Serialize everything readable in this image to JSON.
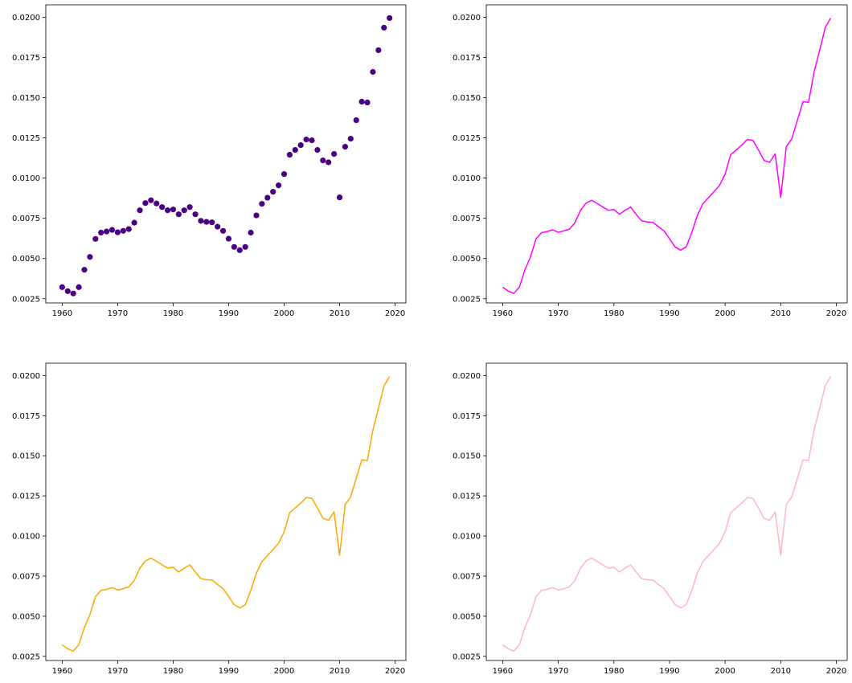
{
  "chart_data": [
    {
      "type": "scatter",
      "color": "#4b0082",
      "title": "",
      "xlabel": "",
      "ylabel": "",
      "xlim": [
        1957.05,
        2021.95
      ],
      "ylim": [
        0.00224,
        0.02077
      ],
      "xticks": [
        1960,
        1970,
        1980,
        1990,
        2000,
        2010,
        2020
      ],
      "xtick_labels": [
        "1960",
        "1970",
        "1980",
        "1990",
        "2000",
        "2010",
        "2020"
      ],
      "yticks": [
        0.0025,
        0.005,
        0.0075,
        0.01,
        0.0125,
        0.015,
        0.0175,
        0.02
      ],
      "ytick_labels": [
        "0.0025",
        "0.0050",
        "0.0075",
        "0.0100",
        "0.0125",
        "0.0150",
        "0.0175",
        "0.0200"
      ],
      "series": [
        {
          "x": [
            1960,
            1961,
            1962,
            1963,
            1964,
            1965,
            1966,
            1967,
            1968,
            1969,
            1970,
            1971,
            1972,
            1973,
            1974,
            1975,
            1976,
            1977,
            1978,
            1979,
            1980,
            1981,
            1982,
            1983,
            1984,
            1985,
            1986,
            1987,
            1988,
            1989,
            1990,
            1991,
            1992,
            1993,
            1994,
            1995,
            1996,
            1997,
            1998,
            1999,
            2000,
            2001,
            2002,
            2003,
            2004,
            2005,
            2006,
            2007,
            2008,
            2009,
            2010,
            2011,
            2012,
            2013,
            2014,
            2015,
            2016,
            2017,
            2018,
            2019
          ],
          "y": [
            0.00322,
            0.00297,
            0.00283,
            0.00322,
            0.0043,
            0.0051,
            0.00622,
            0.00661,
            0.00668,
            0.00678,
            0.00663,
            0.00672,
            0.00683,
            0.00723,
            0.008,
            0.00845,
            0.00862,
            0.00842,
            0.0082,
            0.008,
            0.00805,
            0.00775,
            0.008,
            0.0082,
            0.00775,
            0.00734,
            0.00728,
            0.00725,
            0.00698,
            0.00672,
            0.00623,
            0.00572,
            0.00552,
            0.00572,
            0.00661,
            0.00768,
            0.0084,
            0.00878,
            0.00915,
            0.00955,
            0.01025,
            0.01145,
            0.01175,
            0.01205,
            0.0124,
            0.01235,
            0.01175,
            0.0111,
            0.01098,
            0.0115,
            0.0088,
            0.01195,
            0.01245,
            0.0136,
            0.01475,
            0.0147,
            0.0166,
            0.01795,
            0.01935,
            0.01995
          ]
        }
      ]
    },
    {
      "type": "line",
      "color": "#ff00ff",
      "title": "",
      "xlabel": "",
      "ylabel": "",
      "xlim": [
        1957.05,
        2021.95
      ],
      "ylim": [
        0.00224,
        0.02077
      ],
      "xticks": [
        1960,
        1970,
        1980,
        1990,
        2000,
        2010,
        2020
      ],
      "xtick_labels": [
        "1960",
        "1970",
        "1980",
        "1990",
        "2000",
        "2010",
        "2020"
      ],
      "yticks": [
        0.0025,
        0.005,
        0.0075,
        0.01,
        0.0125,
        0.015,
        0.0175,
        0.02
      ],
      "ytick_labels": [
        "0.0025",
        "0.0050",
        "0.0075",
        "0.0100",
        "0.0125",
        "0.0150",
        "0.0175",
        "0.0200"
      ],
      "series": [
        {
          "x": [
            1960,
            1961,
            1962,
            1963,
            1964,
            1965,
            1966,
            1967,
            1968,
            1969,
            1970,
            1971,
            1972,
            1973,
            1974,
            1975,
            1976,
            1977,
            1978,
            1979,
            1980,
            1981,
            1982,
            1983,
            1984,
            1985,
            1986,
            1987,
            1988,
            1989,
            1990,
            1991,
            1992,
            1993,
            1994,
            1995,
            1996,
            1997,
            1998,
            1999,
            2000,
            2001,
            2002,
            2003,
            2004,
            2005,
            2006,
            2007,
            2008,
            2009,
            2010,
            2011,
            2012,
            2013,
            2014,
            2015,
            2016,
            2017,
            2018,
            2019
          ],
          "y": [
            0.00322,
            0.00297,
            0.00283,
            0.00322,
            0.0043,
            0.0051,
            0.00622,
            0.00661,
            0.00668,
            0.00678,
            0.00663,
            0.00672,
            0.00683,
            0.00723,
            0.008,
            0.00845,
            0.00862,
            0.00842,
            0.0082,
            0.008,
            0.00805,
            0.00775,
            0.008,
            0.0082,
            0.00775,
            0.00734,
            0.00728,
            0.00725,
            0.00698,
            0.00672,
            0.00623,
            0.00572,
            0.00552,
            0.00572,
            0.00661,
            0.00768,
            0.0084,
            0.00878,
            0.00915,
            0.00955,
            0.01025,
            0.01145,
            0.01175,
            0.01205,
            0.0124,
            0.01235,
            0.01175,
            0.0111,
            0.01098,
            0.0115,
            0.0088,
            0.01195,
            0.01245,
            0.0136,
            0.01475,
            0.0147,
            0.0166,
            0.01795,
            0.01935,
            0.01995
          ]
        }
      ]
    },
    {
      "type": "line",
      "color": "#ffa500",
      "title": "",
      "xlabel": "",
      "ylabel": "",
      "xlim": [
        1957.05,
        2021.95
      ],
      "ylim": [
        0.00224,
        0.02077
      ],
      "xticks": [
        1960,
        1970,
        1980,
        1990,
        2000,
        2010,
        2020
      ],
      "xtick_labels": [
        "1960",
        "1970",
        "1980",
        "1990",
        "2000",
        "2010",
        "2020"
      ],
      "yticks": [
        0.0025,
        0.005,
        0.0075,
        0.01,
        0.0125,
        0.015,
        0.0175,
        0.02
      ],
      "ytick_labels": [
        "0.0025",
        "0.0050",
        "0.0075",
        "0.0100",
        "0.0125",
        "0.0150",
        "0.0175",
        "0.0200"
      ],
      "series": [
        {
          "x": [
            1960,
            1961,
            1962,
            1963,
            1964,
            1965,
            1966,
            1967,
            1968,
            1969,
            1970,
            1971,
            1972,
            1973,
            1974,
            1975,
            1976,
            1977,
            1978,
            1979,
            1980,
            1981,
            1982,
            1983,
            1984,
            1985,
            1986,
            1987,
            1988,
            1989,
            1990,
            1991,
            1992,
            1993,
            1994,
            1995,
            1996,
            1997,
            1998,
            1999,
            2000,
            2001,
            2002,
            2003,
            2004,
            2005,
            2006,
            2007,
            2008,
            2009,
            2010,
            2011,
            2012,
            2013,
            2014,
            2015,
            2016,
            2017,
            2018,
            2019
          ],
          "y": [
            0.00322,
            0.00297,
            0.00283,
            0.00322,
            0.0043,
            0.0051,
            0.00622,
            0.00661,
            0.00668,
            0.00678,
            0.00663,
            0.00672,
            0.00683,
            0.00723,
            0.008,
            0.00845,
            0.00862,
            0.00842,
            0.0082,
            0.008,
            0.00805,
            0.00775,
            0.008,
            0.0082,
            0.00775,
            0.00734,
            0.00728,
            0.00725,
            0.00698,
            0.00672,
            0.00623,
            0.00572,
            0.00552,
            0.00572,
            0.00661,
            0.00768,
            0.0084,
            0.00878,
            0.00915,
            0.00955,
            0.01025,
            0.01145,
            0.01175,
            0.01205,
            0.0124,
            0.01235,
            0.01175,
            0.0111,
            0.01098,
            0.0115,
            0.0088,
            0.01195,
            0.01245,
            0.0136,
            0.01475,
            0.0147,
            0.0166,
            0.01795,
            0.01935,
            0.01995
          ]
        }
      ]
    },
    {
      "type": "line",
      "color": "#ffb6c1",
      "title": "",
      "xlabel": "",
      "ylabel": "",
      "xlim": [
        1957.05,
        2021.95
      ],
      "ylim": [
        0.00224,
        0.02077
      ],
      "xticks": [
        1960,
        1970,
        1980,
        1990,
        2000,
        2010,
        2020
      ],
      "xtick_labels": [
        "1960",
        "1970",
        "1980",
        "1990",
        "2000",
        "2010",
        "2020"
      ],
      "yticks": [
        0.0025,
        0.005,
        0.0075,
        0.01,
        0.0125,
        0.015,
        0.0175,
        0.02
      ],
      "ytick_labels": [
        "0.0025",
        "0.0050",
        "0.0075",
        "0.0100",
        "0.0125",
        "0.0150",
        "0.0175",
        "0.0200"
      ],
      "series": [
        {
          "x": [
            1960,
            1961,
            1962,
            1963,
            1964,
            1965,
            1966,
            1967,
            1968,
            1969,
            1970,
            1971,
            1972,
            1973,
            1974,
            1975,
            1976,
            1977,
            1978,
            1979,
            1980,
            1981,
            1982,
            1983,
            1984,
            1985,
            1986,
            1987,
            1988,
            1989,
            1990,
            1991,
            1992,
            1993,
            1994,
            1995,
            1996,
            1997,
            1998,
            1999,
            2000,
            2001,
            2002,
            2003,
            2004,
            2005,
            2006,
            2007,
            2008,
            2009,
            2010,
            2011,
            2012,
            2013,
            2014,
            2015,
            2016,
            2017,
            2018,
            2019
          ],
          "y": [
            0.00322,
            0.00297,
            0.00283,
            0.00322,
            0.0043,
            0.0051,
            0.00622,
            0.00661,
            0.00668,
            0.00678,
            0.00663,
            0.00672,
            0.00683,
            0.00723,
            0.008,
            0.00845,
            0.00862,
            0.00842,
            0.0082,
            0.008,
            0.00805,
            0.00775,
            0.008,
            0.0082,
            0.00775,
            0.00734,
            0.00728,
            0.00725,
            0.00698,
            0.00672,
            0.00623,
            0.00572,
            0.00552,
            0.00572,
            0.00661,
            0.00768,
            0.0084,
            0.00878,
            0.00915,
            0.00955,
            0.01025,
            0.01145,
            0.01175,
            0.01205,
            0.0124,
            0.01235,
            0.01175,
            0.0111,
            0.01098,
            0.0115,
            0.0088,
            0.01195,
            0.01245,
            0.0136,
            0.01475,
            0.0147,
            0.0166,
            0.01795,
            0.01935,
            0.01995
          ]
        }
      ]
    }
  ]
}
